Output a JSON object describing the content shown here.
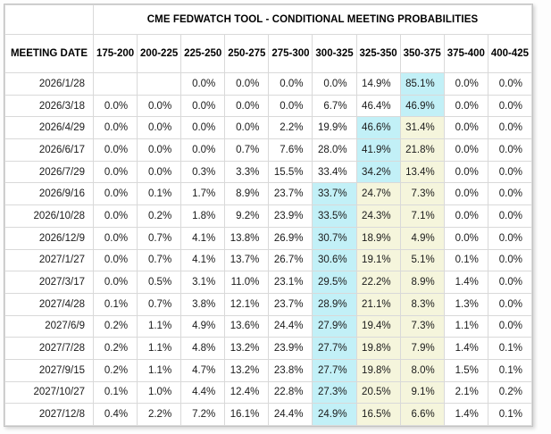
{
  "colors": {
    "highlight_cyan": "#c2f0f7",
    "highlight_yellow": "#f5f5dc",
    "grid_border": "#d9d9d9",
    "outer_border": "#c4c4c4",
    "text": "#1a1a1a"
  },
  "chart_data": {
    "type": "table",
    "title": "CME FEDWATCH TOOL - CONDITIONAL MEETING PROBABILITIES",
    "corner_label": "MEETING DATE",
    "columns": [
      "175-200",
      "200-225",
      "225-250",
      "250-275",
      "275-300",
      "300-325",
      "325-350",
      "350-375",
      "375-400",
      "400-425"
    ],
    "rows": [
      {
        "date": "2026/1/28",
        "values": [
          "",
          "",
          "0.0%",
          "0.0%",
          "0.0%",
          "0.0%",
          "14.9%",
          "85.1%",
          "0.0%",
          "0.0%"
        ],
        "highlights": [
          "",
          "",
          "",
          "",
          "",
          "",
          "",
          "cyan",
          "",
          ""
        ]
      },
      {
        "date": "2026/3/18",
        "values": [
          "0.0%",
          "0.0%",
          "0.0%",
          "0.0%",
          "0.0%",
          "6.7%",
          "46.4%",
          "46.9%",
          "0.0%",
          "0.0%"
        ],
        "highlights": [
          "",
          "",
          "",
          "",
          "",
          "",
          "",
          "cyan",
          "",
          ""
        ]
      },
      {
        "date": "2026/4/29",
        "values": [
          "0.0%",
          "0.0%",
          "0.0%",
          "0.0%",
          "2.2%",
          "19.9%",
          "46.6%",
          "31.4%",
          "0.0%",
          "0.0%"
        ],
        "highlights": [
          "",
          "",
          "",
          "",
          "",
          "",
          "cyan",
          "yellow",
          "",
          ""
        ]
      },
      {
        "date": "2026/6/17",
        "values": [
          "0.0%",
          "0.0%",
          "0.0%",
          "0.7%",
          "7.6%",
          "28.0%",
          "41.9%",
          "21.8%",
          "0.0%",
          "0.0%"
        ],
        "highlights": [
          "",
          "",
          "",
          "",
          "",
          "",
          "cyan",
          "yellow",
          "",
          ""
        ]
      },
      {
        "date": "2026/7/29",
        "values": [
          "0.0%",
          "0.0%",
          "0.3%",
          "3.3%",
          "15.5%",
          "33.4%",
          "34.2%",
          "13.4%",
          "0.0%",
          "0.0%"
        ],
        "highlights": [
          "",
          "",
          "",
          "",
          "",
          "",
          "cyan",
          "yellow",
          "",
          ""
        ]
      },
      {
        "date": "2026/9/16",
        "values": [
          "0.0%",
          "0.1%",
          "1.7%",
          "8.9%",
          "23.7%",
          "33.7%",
          "24.7%",
          "7.3%",
          "0.0%",
          "0.0%"
        ],
        "highlights": [
          "",
          "",
          "",
          "",
          "",
          "cyan",
          "yellow",
          "yellow",
          "",
          ""
        ]
      },
      {
        "date": "2026/10/28",
        "values": [
          "0.0%",
          "0.2%",
          "1.8%",
          "9.2%",
          "23.9%",
          "33.5%",
          "24.3%",
          "7.1%",
          "0.0%",
          "0.0%"
        ],
        "highlights": [
          "",
          "",
          "",
          "",
          "",
          "cyan",
          "yellow",
          "yellow",
          "",
          ""
        ]
      },
      {
        "date": "2026/12/9",
        "values": [
          "0.0%",
          "0.7%",
          "4.1%",
          "13.8%",
          "26.9%",
          "30.7%",
          "18.9%",
          "4.9%",
          "0.0%",
          "0.0%"
        ],
        "highlights": [
          "",
          "",
          "",
          "",
          "",
          "cyan",
          "yellow",
          "yellow",
          "",
          ""
        ]
      },
      {
        "date": "2027/1/27",
        "values": [
          "0.0%",
          "0.7%",
          "4.1%",
          "13.7%",
          "26.7%",
          "30.6%",
          "19.1%",
          "5.1%",
          "0.1%",
          "0.0%"
        ],
        "highlights": [
          "",
          "",
          "",
          "",
          "",
          "cyan",
          "yellow",
          "yellow",
          "",
          ""
        ]
      },
      {
        "date": "2027/3/17",
        "values": [
          "0.0%",
          "0.5%",
          "3.1%",
          "11.0%",
          "23.1%",
          "29.5%",
          "22.2%",
          "8.9%",
          "1.4%",
          "0.0%"
        ],
        "highlights": [
          "",
          "",
          "",
          "",
          "",
          "cyan",
          "yellow",
          "yellow",
          "",
          ""
        ]
      },
      {
        "date": "2027/4/28",
        "values": [
          "0.1%",
          "0.7%",
          "3.8%",
          "12.1%",
          "23.7%",
          "28.9%",
          "21.1%",
          "8.3%",
          "1.3%",
          "0.0%"
        ],
        "highlights": [
          "",
          "",
          "",
          "",
          "",
          "cyan",
          "yellow",
          "yellow",
          "",
          ""
        ]
      },
      {
        "date": "2027/6/9",
        "values": [
          "0.2%",
          "1.1%",
          "4.9%",
          "13.6%",
          "24.4%",
          "27.9%",
          "19.4%",
          "7.3%",
          "1.1%",
          "0.0%"
        ],
        "highlights": [
          "",
          "",
          "",
          "",
          "",
          "cyan",
          "yellow",
          "yellow",
          "",
          ""
        ]
      },
      {
        "date": "2027/7/28",
        "values": [
          "0.2%",
          "1.1%",
          "4.8%",
          "13.2%",
          "23.9%",
          "27.7%",
          "19.8%",
          "7.9%",
          "1.4%",
          "0.1%"
        ],
        "highlights": [
          "",
          "",
          "",
          "",
          "",
          "cyan",
          "yellow",
          "yellow",
          "",
          ""
        ]
      },
      {
        "date": "2027/9/15",
        "values": [
          "0.2%",
          "1.1%",
          "4.7%",
          "13.2%",
          "23.8%",
          "27.7%",
          "19.8%",
          "8.0%",
          "1.5%",
          "0.1%"
        ],
        "highlights": [
          "",
          "",
          "",
          "",
          "",
          "cyan",
          "yellow",
          "yellow",
          "",
          ""
        ]
      },
      {
        "date": "2027/10/27",
        "values": [
          "0.1%",
          "1.0%",
          "4.4%",
          "12.4%",
          "22.8%",
          "27.3%",
          "20.5%",
          "9.1%",
          "2.1%",
          "0.2%"
        ],
        "highlights": [
          "",
          "",
          "",
          "",
          "",
          "cyan",
          "yellow",
          "yellow",
          "",
          ""
        ]
      },
      {
        "date": "2027/12/8",
        "values": [
          "0.4%",
          "2.2%",
          "7.2%",
          "16.1%",
          "24.4%",
          "24.9%",
          "16.5%",
          "6.6%",
          "1.4%",
          "0.1%"
        ],
        "highlights": [
          "",
          "",
          "",
          "",
          "",
          "cyan",
          "yellow",
          "yellow",
          "",
          ""
        ]
      }
    ]
  }
}
